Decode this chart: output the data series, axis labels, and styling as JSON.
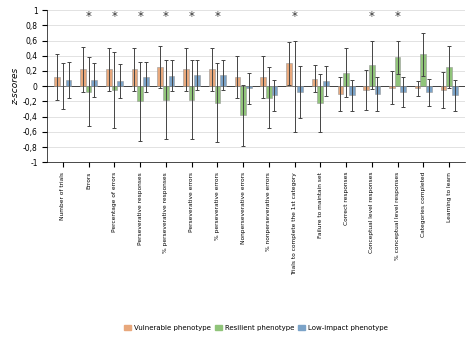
{
  "categories": [
    "Number of trials",
    "Errors",
    "Percentage of errors",
    "Perseverative responses",
    "% perseverative responses",
    "Perseverative errors",
    "% perseverative errors",
    "Nonperseverative errors",
    "% nonperseverative errors",
    "Trials to complete the 1st category",
    "Failure to maintain set",
    "Correct responses",
    "Conceptual level responses",
    "% conceptual level responses",
    "Categories completed",
    "Learning to learn"
  ],
  "vulnerable": {
    "means": [
      0.12,
      0.22,
      0.22,
      0.22,
      0.25,
      0.22,
      0.22,
      0.12,
      0.12,
      0.3,
      0.1,
      -0.1,
      -0.05,
      -0.02,
      -0.03,
      -0.05
    ],
    "err_lo": [
      0.3,
      0.3,
      0.28,
      0.28,
      0.28,
      0.28,
      0.28,
      0.28,
      0.28,
      0.28,
      0.18,
      0.22,
      0.26,
      0.22,
      0.1,
      0.24
    ],
    "err_hi": [
      0.3,
      0.3,
      0.28,
      0.28,
      0.28,
      0.28,
      0.28,
      0.28,
      0.28,
      0.28,
      0.18,
      0.22,
      0.26,
      0.22,
      0.1,
      0.24
    ]
  },
  "resilient": {
    "means": [
      0.0,
      -0.07,
      -0.05,
      -0.2,
      -0.18,
      -0.18,
      -0.22,
      -0.38,
      -0.15,
      0.0,
      -0.22,
      0.18,
      0.28,
      0.38,
      0.42,
      0.25
    ],
    "err_lo": [
      0.3,
      0.45,
      0.5,
      0.52,
      0.52,
      0.52,
      0.52,
      0.4,
      0.4,
      0.6,
      0.38,
      0.32,
      0.32,
      0.22,
      0.28,
      0.28
    ],
    "err_hi": [
      0.3,
      0.45,
      0.5,
      0.52,
      0.52,
      0.52,
      0.52,
      0.4,
      0.4,
      0.6,
      0.38,
      0.32,
      0.32,
      0.22,
      0.28,
      0.28
    ]
  },
  "lowimpact": {
    "means": [
      0.08,
      0.08,
      0.07,
      0.12,
      0.14,
      0.15,
      0.15,
      -0.03,
      -0.12,
      -0.08,
      0.07,
      -0.12,
      -0.1,
      -0.08,
      -0.08,
      -0.12
    ],
    "err_lo": [
      0.24,
      0.22,
      0.22,
      0.2,
      0.2,
      0.2,
      0.2,
      0.2,
      0.2,
      0.34,
      0.2,
      0.2,
      0.22,
      0.2,
      0.18,
      0.2
    ],
    "err_hi": [
      0.24,
      0.22,
      0.22,
      0.2,
      0.2,
      0.2,
      0.2,
      0.2,
      0.2,
      0.34,
      0.2,
      0.2,
      0.22,
      0.2,
      0.18,
      0.2
    ]
  },
  "significant": [
    1,
    2,
    3,
    4,
    5,
    6,
    9,
    12,
    13
  ],
  "colors": {
    "vulnerable": "#E8A87C",
    "resilient": "#90C47A",
    "lowimpact": "#7BA3C8"
  },
  "ylabel": "z-scores",
  "ylim": [
    -1.0,
    1.0
  ],
  "yticks": [
    -1.0,
    -0.8,
    -0.6,
    -0.4,
    -0.2,
    0.0,
    0.2,
    0.4,
    0.6,
    0.8,
    1.0
  ],
  "ytick_labels": [
    "-1",
    "-0,8",
    "-0,6",
    "-0,4",
    "-0,2",
    "0",
    "0,2",
    "0,4",
    "0,6",
    "0,8",
    "1"
  ],
  "bar_width": 0.22,
  "legend": [
    "Vulnerable phenotype",
    "Resilient phenotype",
    "Low-impact phenotype"
  ]
}
